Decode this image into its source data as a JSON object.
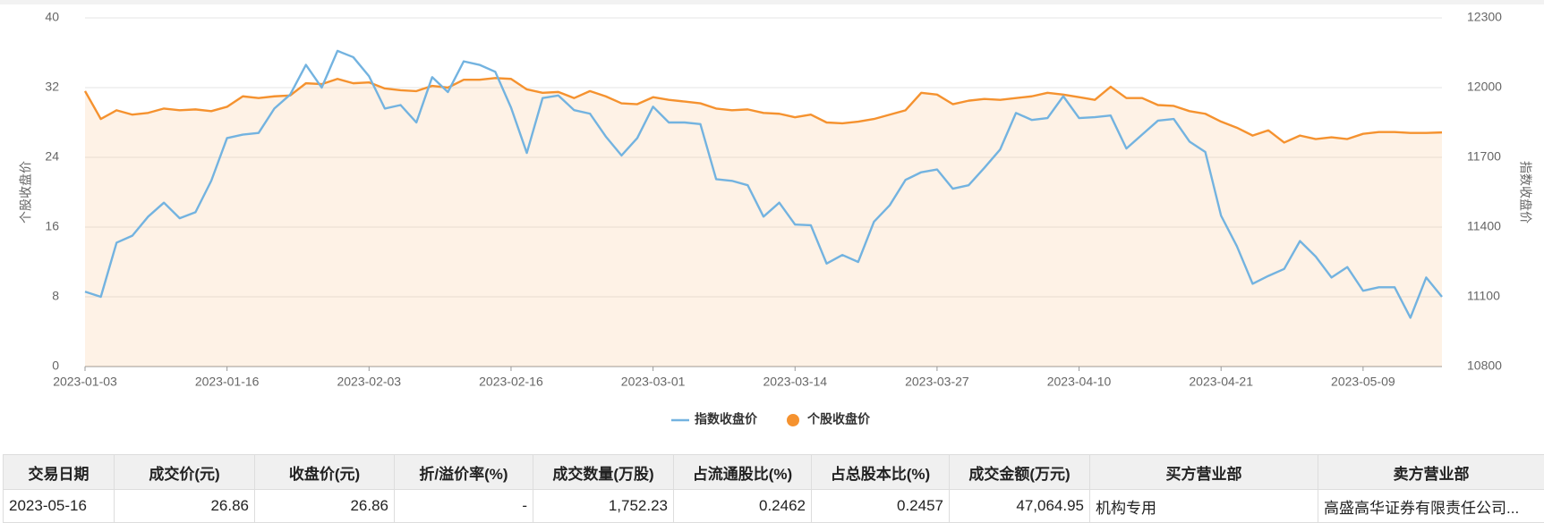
{
  "chart_data": {
    "type": "line",
    "ylabel": "个股收盘价",
    "y2label": "指数收盘价",
    "categories": [
      "2023-01-03",
      null,
      null,
      null,
      null,
      null,
      null,
      null,
      null,
      "2023-01-16",
      null,
      null,
      null,
      null,
      null,
      null,
      null,
      null,
      "2023-02-03",
      null,
      null,
      null,
      null,
      null,
      null,
      null,
      null,
      "2023-02-16",
      null,
      null,
      null,
      null,
      null,
      null,
      null,
      null,
      "2023-03-01",
      null,
      null,
      null,
      null,
      null,
      null,
      null,
      null,
      "2023-03-14",
      null,
      null,
      null,
      null,
      null,
      null,
      null,
      null,
      "2023-03-27",
      null,
      null,
      null,
      null,
      null,
      null,
      null,
      null,
      "2023-04-10",
      null,
      null,
      null,
      null,
      null,
      null,
      null,
      null,
      "2023-04-21",
      null,
      null,
      null,
      null,
      null,
      null,
      null,
      null,
      "2023-05-09",
      null,
      null,
      null,
      null,
      null
    ],
    "series": [
      {
        "name": "指数收盘价",
        "color": "#73b3e0",
        "axis": "y2",
        "values": [
          11122,
          11100,
          11333,
          11363,
          11445,
          11505,
          11438,
          11464,
          11599,
          11783,
          11798,
          11805,
          11910,
          11970,
          12098,
          12000,
          12158,
          12131,
          12049,
          11910,
          11925,
          11850,
          12045,
          11981,
          12113,
          12098,
          12068,
          11914,
          11719,
          11955,
          11966,
          11903,
          11888,
          11790,
          11708,
          11783,
          11918,
          11850,
          11850,
          11843,
          11606,
          11599,
          11580,
          11445,
          11505,
          11411,
          11408,
          11243,
          11280,
          11250,
          11423,
          11494,
          11603,
          11636,
          11648,
          11565,
          11580,
          11655,
          11734,
          11891,
          11861,
          11869,
          11963,
          11869,
          11873,
          11880,
          11738,
          11798,
          11858,
          11865,
          11768,
          11723,
          11449,
          11318,
          11156,
          11190,
          11220,
          11340,
          11273,
          11183,
          11228,
          11126,
          11141,
          11141,
          11010,
          11183,
          11100
        ]
      },
      {
        "name": "个股收盘价",
        "color": "#f5922f",
        "area": true,
        "values": [
          31.6,
          28.4,
          29.4,
          28.9,
          29.1,
          29.6,
          29.4,
          29.5,
          29.3,
          29.8,
          31.0,
          30.8,
          31.0,
          31.1,
          32.5,
          32.4,
          33.0,
          32.5,
          32.6,
          31.9,
          31.7,
          31.6,
          32.2,
          32.0,
          32.9,
          32.9,
          33.1,
          33.0,
          31.8,
          31.4,
          31.5,
          30.8,
          31.6,
          31.0,
          30.2,
          30.1,
          30.9,
          30.6,
          30.4,
          30.2,
          29.6,
          29.4,
          29.5,
          29.1,
          29.0,
          28.6,
          28.9,
          28.0,
          27.9,
          28.1,
          28.4,
          28.9,
          29.4,
          31.4,
          31.2,
          30.1,
          30.5,
          30.7,
          30.6,
          30.8,
          31.0,
          31.4,
          31.2,
          30.9,
          30.6,
          32.1,
          30.8,
          30.8,
          30.0,
          29.9,
          29.3,
          29.0,
          28.1,
          27.4,
          26.5,
          27.1,
          25.7,
          26.5,
          26.1,
          26.3,
          26.1,
          26.7,
          26.9,
          26.9,
          26.8,
          26.8,
          26.86
        ]
      }
    ],
    "ylim": [
      0,
      40
    ],
    "yticks": [
      0,
      8,
      16,
      24,
      32,
      40
    ],
    "y2lim": [
      10800,
      12300
    ],
    "y2ticks": [
      10800,
      11100,
      11400,
      11700,
      12000,
      12300
    ],
    "grid": true,
    "legend": "bottom"
  },
  "table": {
    "headers": [
      "交易日期",
      "成交价(元)",
      "收盘价(元)",
      "折/溢价率(%)",
      "成交数量(万股)",
      "占流通股比(%)",
      "占总股本比(%)",
      "成交金额(万元)",
      "买方营业部",
      "卖方营业部"
    ],
    "rows": [
      [
        "2023-05-16",
        "26.86",
        "26.86",
        "-",
        "1,752.23",
        "0.2462",
        "0.2457",
        "47,064.95",
        "机构专用",
        "高盛高华证券有限责任公司..."
      ]
    ]
  }
}
